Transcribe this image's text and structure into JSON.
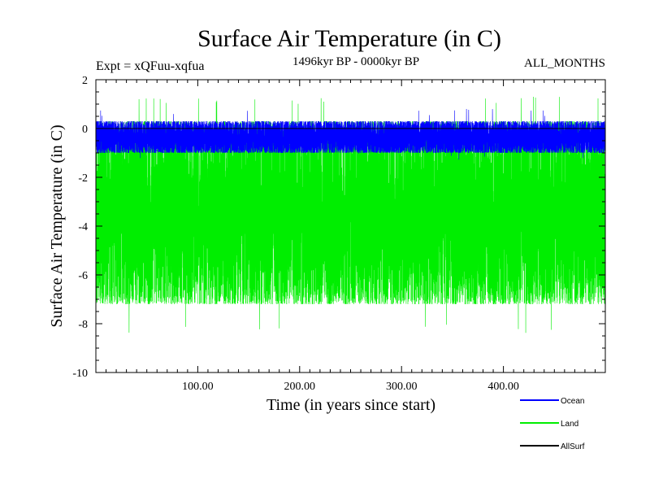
{
  "chart_data": {
    "type": "line",
    "title": "Surface Air Temperature (in C)",
    "subtitle": "1496kyr BP - 0000kyr BP",
    "left_annotation": "Expt = xQFuu-xqfua",
    "right_annotation": "ALL_MONTHS",
    "xlabel": "Time (in years since start)",
    "ylabel": "Surface Air Temperature (in C)",
    "xlim": [
      0,
      500
    ],
    "ylim": [
      -10,
      2
    ],
    "x_ticks": [
      {
        "value": 100,
        "label": "100.00"
      },
      {
        "value": 200,
        "label": "200.00"
      },
      {
        "value": 300,
        "label": "300.00"
      },
      {
        "value": 400,
        "label": "400.00"
      }
    ],
    "y_ticks": [
      {
        "value": 2,
        "label": "2"
      },
      {
        "value": 0,
        "label": "0"
      },
      {
        "value": -2,
        "label": "-2"
      },
      {
        "value": -4,
        "label": "-4"
      },
      {
        "value": -6,
        "label": "-6"
      },
      {
        "value": -8,
        "label": "-8"
      },
      {
        "value": -10,
        "label": "-10"
      }
    ],
    "series": [
      {
        "name": "Land",
        "color": "#00ee00",
        "mean": -3.5,
        "low": -7.2,
        "high": 0.3,
        "min": -8.4,
        "max": 1.3
      },
      {
        "name": "Ocean",
        "color": "#0000ff",
        "mean": -0.4,
        "low": -1.0,
        "high": 0.3,
        "min": -1.3,
        "max": 0.8
      },
      {
        "name": "AllSurf",
        "color": "#000000",
        "mean": 0.0,
        "low": 0.0,
        "high": 0.0,
        "min": 0.0,
        "max": 0.0
      }
    ],
    "legend": [
      {
        "name": "Ocean",
        "color": "#0000ff"
      },
      {
        "name": "Land",
        "color": "#00ee00"
      },
      {
        "name": "AllSurf",
        "color": "#000000"
      }
    ]
  }
}
